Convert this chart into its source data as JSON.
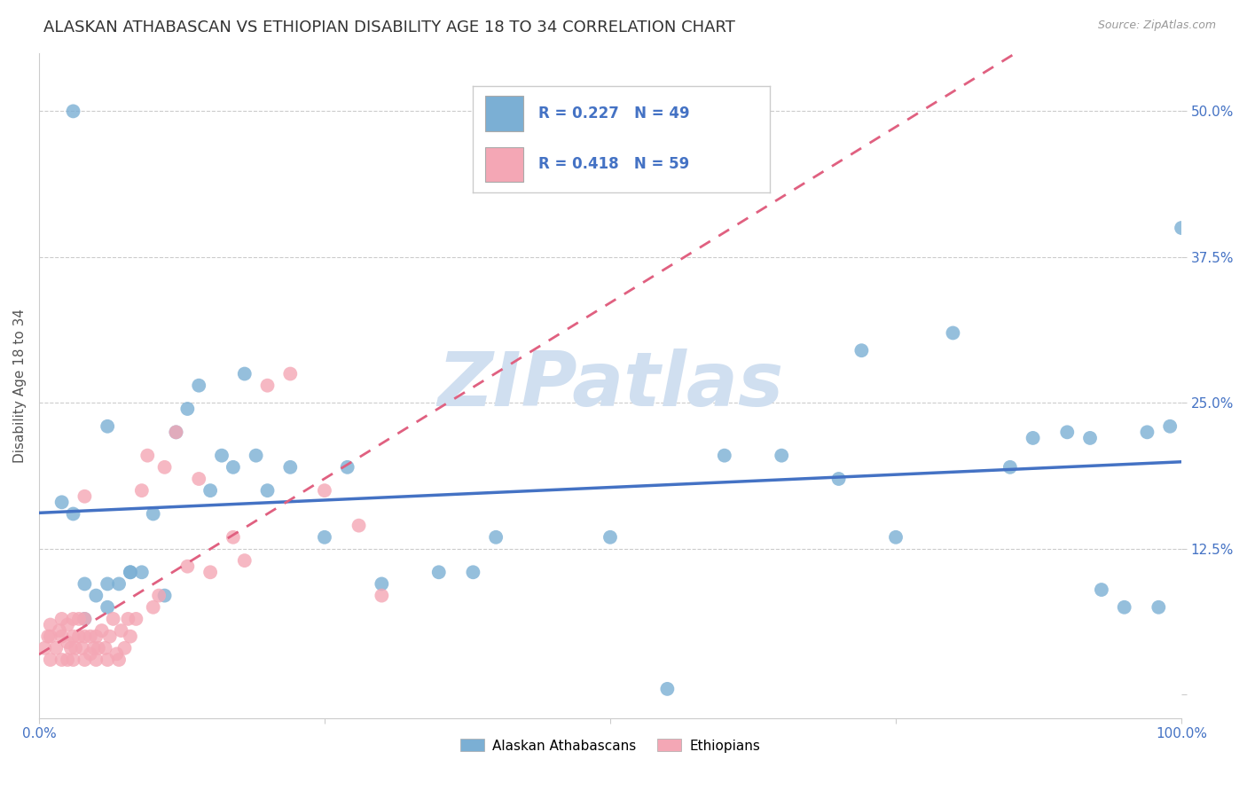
{
  "title": "ALASKAN ATHABASCAN VS ETHIOPIAN DISABILITY AGE 18 TO 34 CORRELATION CHART",
  "source": "Source: ZipAtlas.com",
  "ylabel": "Disability Age 18 to 34",
  "xlim": [
    0.0,
    1.0
  ],
  "ylim": [
    -0.02,
    0.55
  ],
  "xticks": [
    0.0,
    0.25,
    0.5,
    0.75,
    1.0
  ],
  "xticklabels": [
    "0.0%",
    "",
    "",
    "",
    "100.0%"
  ],
  "yticks": [
    0.0,
    0.125,
    0.25,
    0.375,
    0.5
  ],
  "yticklabels_right": [
    "",
    "12.5%",
    "25.0%",
    "37.5%",
    "50.0%"
  ],
  "blue_color": "#7BAFD4",
  "pink_color": "#F4A7B5",
  "blue_line_color": "#4472C4",
  "pink_line_color": "#E06080",
  "trendline_pink_color": "#BBBBBB",
  "legend_R_blue": "0.227",
  "legend_N_blue": "49",
  "legend_R_pink": "0.418",
  "legend_N_pink": "59",
  "legend_text_color": "#4472C4",
  "watermark": "ZIPatlas",
  "watermark_color": "#D0DFF0",
  "grid_color": "#CCCCCC",
  "background_color": "#FFFFFF",
  "title_fontsize": 13,
  "axis_label_fontsize": 11,
  "tick_fontsize": 11,
  "blue_scatter_x": [
    0.02,
    0.03,
    0.04,
    0.04,
    0.05,
    0.06,
    0.06,
    0.07,
    0.08,
    0.09,
    0.1,
    0.11,
    0.12,
    0.13,
    0.14,
    0.15,
    0.16,
    0.17,
    0.19,
    0.2,
    0.22,
    0.25,
    0.3,
    0.35,
    0.4,
    0.5,
    0.55,
    0.6,
    0.65,
    0.7,
    0.72,
    0.75,
    0.8,
    0.85,
    0.87,
    0.9,
    0.92,
    0.93,
    0.95,
    0.97,
    0.98,
    0.99,
    1.0,
    0.03,
    0.06,
    0.08,
    0.18,
    0.27,
    0.38
  ],
  "blue_scatter_y": [
    0.165,
    0.155,
    0.065,
    0.095,
    0.085,
    0.075,
    0.095,
    0.095,
    0.105,
    0.105,
    0.155,
    0.085,
    0.225,
    0.245,
    0.265,
    0.175,
    0.205,
    0.195,
    0.205,
    0.175,
    0.195,
    0.135,
    0.095,
    0.105,
    0.135,
    0.135,
    0.005,
    0.205,
    0.205,
    0.185,
    0.295,
    0.135,
    0.31,
    0.195,
    0.22,
    0.225,
    0.22,
    0.09,
    0.075,
    0.225,
    0.075,
    0.23,
    0.4,
    0.5,
    0.23,
    0.105,
    0.275,
    0.195,
    0.105
  ],
  "pink_scatter_x": [
    0.005,
    0.008,
    0.01,
    0.01,
    0.01,
    0.015,
    0.018,
    0.02,
    0.02,
    0.02,
    0.025,
    0.025,
    0.025,
    0.028,
    0.03,
    0.03,
    0.03,
    0.032,
    0.035,
    0.035,
    0.038,
    0.04,
    0.04,
    0.04,
    0.045,
    0.045,
    0.048,
    0.05,
    0.05,
    0.052,
    0.055,
    0.058,
    0.06,
    0.062,
    0.065,
    0.068,
    0.07,
    0.072,
    0.075,
    0.078,
    0.08,
    0.085,
    0.09,
    0.095,
    0.1,
    0.105,
    0.11,
    0.12,
    0.13,
    0.14,
    0.15,
    0.17,
    0.18,
    0.2,
    0.22,
    0.25,
    0.28,
    0.3,
    0.04
  ],
  "pink_scatter_y": [
    0.04,
    0.05,
    0.03,
    0.05,
    0.06,
    0.04,
    0.055,
    0.03,
    0.05,
    0.065,
    0.03,
    0.045,
    0.06,
    0.04,
    0.03,
    0.05,
    0.065,
    0.04,
    0.05,
    0.065,
    0.04,
    0.03,
    0.05,
    0.065,
    0.035,
    0.05,
    0.04,
    0.03,
    0.05,
    0.04,
    0.055,
    0.04,
    0.03,
    0.05,
    0.065,
    0.035,
    0.03,
    0.055,
    0.04,
    0.065,
    0.05,
    0.065,
    0.175,
    0.205,
    0.075,
    0.085,
    0.195,
    0.225,
    0.11,
    0.185,
    0.105,
    0.135,
    0.115,
    0.265,
    0.275,
    0.175,
    0.145,
    0.085,
    0.17
  ]
}
